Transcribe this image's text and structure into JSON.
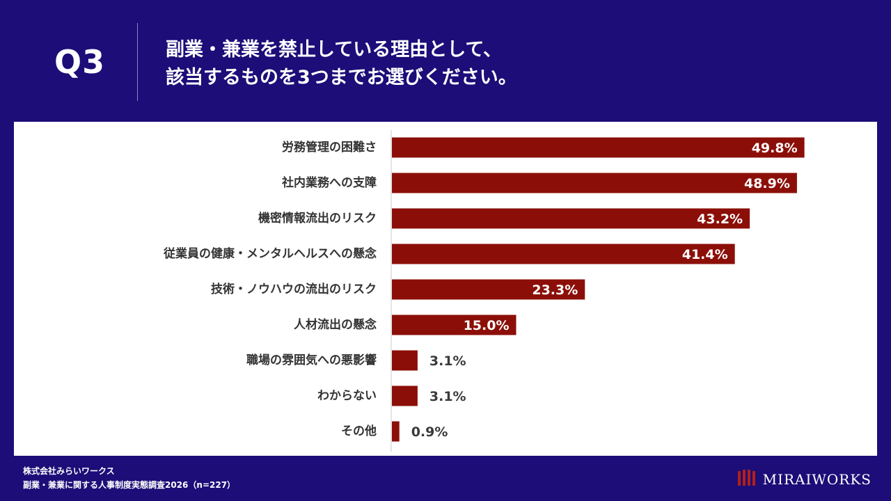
{
  "header": {
    "q_number": "Q3",
    "question_line1": "副業・兼業を禁止している理由として、",
    "question_line2": "該当するものを3つまでお選びください。"
  },
  "chart_data": {
    "type": "bar",
    "orientation": "horizontal",
    "categories": [
      "労務管理の困難さ",
      "社内業務への支障",
      "機密情報流出のリスク",
      "従業員の健康・メンタルヘルスへの懸念",
      "技術・ノウハウの流出のリスク",
      "人材流出の懸念",
      "職場の雰囲気への悪影響",
      "わからない",
      "その他"
    ],
    "values": [
      49.8,
      48.9,
      43.2,
      41.4,
      23.3,
      15.0,
      3.1,
      3.1,
      0.9
    ],
    "value_labels": [
      "49.8%",
      "48.9%",
      "43.2%",
      "41.4%",
      "23.3%",
      "15.0%",
      "3.1%",
      "3.1%",
      "0.9%"
    ],
    "xlim": [
      0,
      50
    ],
    "grid": false,
    "bar_color": "#8b0f08",
    "inside_label_color": "#ffffff",
    "outside_label_color": "#3a3a3a"
  },
  "footer": {
    "company": "株式会社みらいワークス",
    "survey": "副業・兼業に関する人事制度実態調査2026（n=227）"
  },
  "brand": {
    "name": "MIRAIWORKS",
    "logo_icon": "bars-logo-icon"
  },
  "colors": {
    "background": "#1c0d78",
    "panel": "#ffffff",
    "bar": "#8b0f08",
    "axis": "#c8c8c8"
  }
}
